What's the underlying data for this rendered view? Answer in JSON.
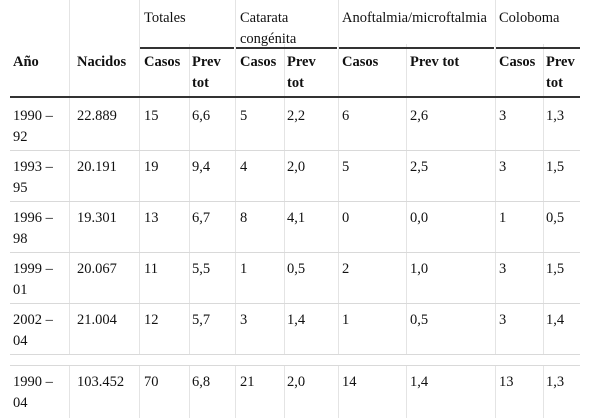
{
  "table": {
    "groups": {
      "totales": "Totales",
      "catarata": "Catarata congénita",
      "anoftalmia": "Anoftalmia/microftalmia",
      "coloboma": "Coloboma"
    },
    "headers": {
      "ano": "Año",
      "nacidos": "Nacidos",
      "casos": "Casos",
      "prev": "Prev tot"
    },
    "rows": [
      {
        "ano": "1990 – 92",
        "nacidos": "22.889",
        "c1": "15",
        "p1": "6,6",
        "c2": "5",
        "p2": "2,2",
        "c3": "6",
        "p3": "2,6",
        "c4": "3",
        "p4": "1,3"
      },
      {
        "ano": "1993 – 95",
        "nacidos": "20.191",
        "c1": "19",
        "p1": "9,4",
        "c2": "4",
        "p2": "2,0",
        "c3": "5",
        "p3": "2,5",
        "c4": "3",
        "p4": "1,5"
      },
      {
        "ano": "1996 – 98",
        "nacidos": "19.301",
        "c1": "13",
        "p1": "6,7",
        "c2": "8",
        "p2": "4,1",
        "c3": "0",
        "p3": "0,0",
        "c4": "1",
        "p4": "0,5"
      },
      {
        "ano": "1999 – 01",
        "nacidos": "20.067",
        "c1": "11",
        "p1": "5,5",
        "c2": "1",
        "p2": "0,5",
        "c3": "2",
        "p3": "1,0",
        "c4": "3",
        "p4": "1,5"
      },
      {
        "ano": "2002 – 04",
        "nacidos": "21.004",
        "c1": "12",
        "p1": "5,7",
        "c2": "3",
        "p2": "1,4",
        "c3": "1",
        "p3": "0,5",
        "c4": "3",
        "p4": "1,4"
      }
    ],
    "total": {
      "ano": "1990 – 04",
      "nacidos": "103.452",
      "c1": "70",
      "p1": "6,8",
      "c2": "21",
      "p2": "2,0",
      "c3": "14",
      "p3": "1,4",
      "c4": "13",
      "p4": "1,3"
    }
  }
}
